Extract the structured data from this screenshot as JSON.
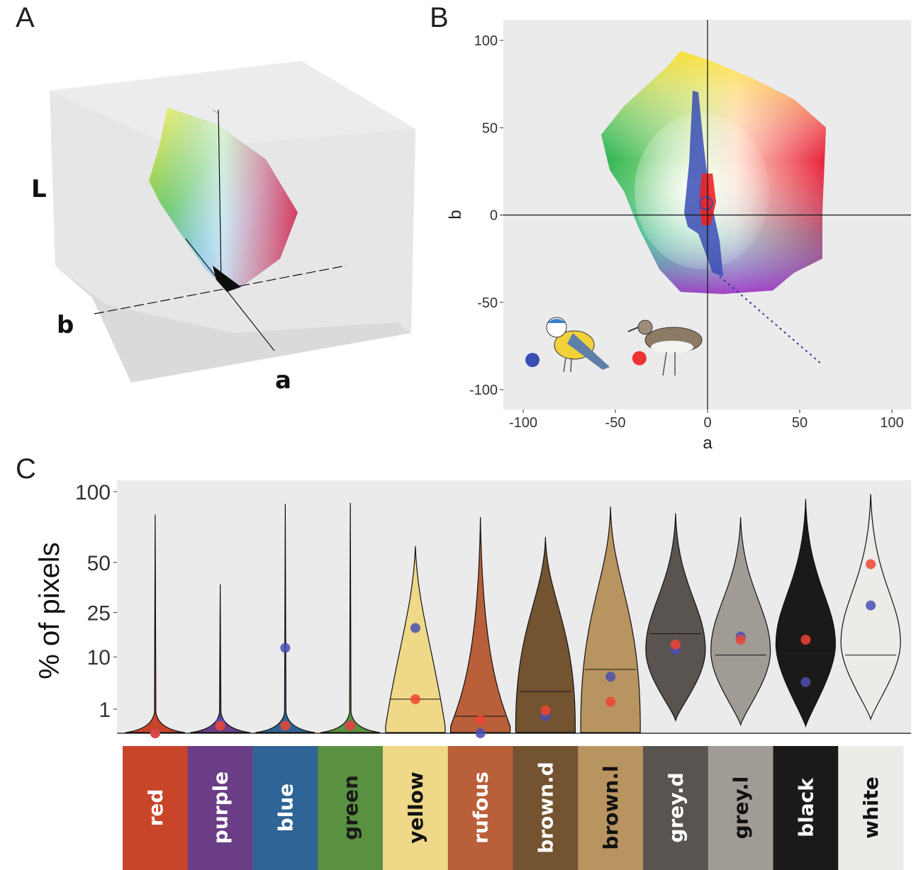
{
  "panel_a": {
    "letter": "A",
    "axis_labels": {
      "L": "L",
      "b": "b",
      "a": "a"
    }
  },
  "panel_b": {
    "letter": "B",
    "xlabel": "a",
    "ylabel": "b",
    "x_ticks": [
      "-100",
      "-50",
      "0",
      "50",
      "100"
    ],
    "y_ticks": [
      "100",
      "50",
      "0",
      "-50",
      "-100"
    ],
    "legend_colors": {
      "blue_tit": "#3a4db5",
      "sandpiper": "#ee3333"
    }
  },
  "panel_c": {
    "letter": "C",
    "ylabel": "% of pixels",
    "y_ticks": [
      "100",
      "50",
      "25",
      "10",
      "1"
    ],
    "categories": [
      {
        "label": "red",
        "fill": "#c8452a",
        "text": "#ffffff"
      },
      {
        "label": "purple",
        "fill": "#6a3d86",
        "text": "#ffffff"
      },
      {
        "label": "blue",
        "fill": "#2f6596",
        "text": "#ffffff"
      },
      {
        "label": "green",
        "fill": "#5a9140",
        "text": "#1a1a1a"
      },
      {
        "label": "yellow",
        "fill": "#efd888",
        "text": "#111111"
      },
      {
        "label": "rufous",
        "fill": "#b95f39",
        "text": "#ffffff"
      },
      {
        "label": "brown.d",
        "fill": "#735330",
        "text": "#ffffff"
      },
      {
        "label": "brown.l",
        "fill": "#b89460",
        "text": "#111111"
      },
      {
        "label": "grey.d",
        "fill": "#5a5450",
        "text": "#ffffff"
      },
      {
        "label": "grey.l",
        "fill": "#a19b96",
        "text": "#111111"
      },
      {
        "label": "black",
        "fill": "#1c1a18",
        "text": "#ffffff"
      },
      {
        "label": "white",
        "fill": "#ebebe7",
        "text": "#111111"
      }
    ]
  },
  "chart_data": [
    {
      "type": "scatter",
      "panel": "A",
      "xlabel": "a",
      "ylabel": "b",
      "zlabel": "L",
      "note_series": []
    },
    {
      "type": "scatter",
      "panel": "B",
      "xlabel": "a",
      "ylabel": "b",
      "xlim": [
        -110,
        110
      ],
      "ylim": [
        -110,
        105
      ],
      "grid": false,
      "series": [
        {
          "color": "#3a4db5",
          "mean_point": {
            "x": -95,
            "y": -83
          }
        },
        {
          "color": "#ee3333",
          "mean_point": {
            "x": -37,
            "y": -82
          }
        }
      ]
    },
    {
      "type": "violin",
      "panel": "C",
      "ylabel": "% of pixels",
      "yscale": "sqrt",
      "ylim": [
        0,
        100
      ],
      "categories": [
        "red",
        "purple",
        "blue",
        "green",
        "yellow",
        "rufous",
        "brown.d",
        "brown.l",
        "grey.d",
        "grey.l",
        "black",
        "white"
      ],
      "max_values": [
        82,
        38,
        90,
        91,
        60,
        80,
        66,
        88,
        83,
        80,
        94,
        98
      ],
      "medians": [
        0,
        0,
        0,
        0,
        2,
        0.5,
        3,
        7,
        17,
        10.5,
        12,
        10.5
      ],
      "series": [
        {
          "color": "#4a4fb0",
          "values": [
            0,
            0.2,
            12.5,
            0.1,
            19,
            0,
            0.5,
            5.5,
            12,
            16,
            4.5,
            28
          ]
        },
        {
          "color": "#ee4433",
          "values": [
            0,
            0.1,
            0.1,
            0.1,
            2,
            0.3,
            0.9,
            1.7,
            13.5,
            15,
            15,
            49
          ]
        }
      ]
    }
  ]
}
